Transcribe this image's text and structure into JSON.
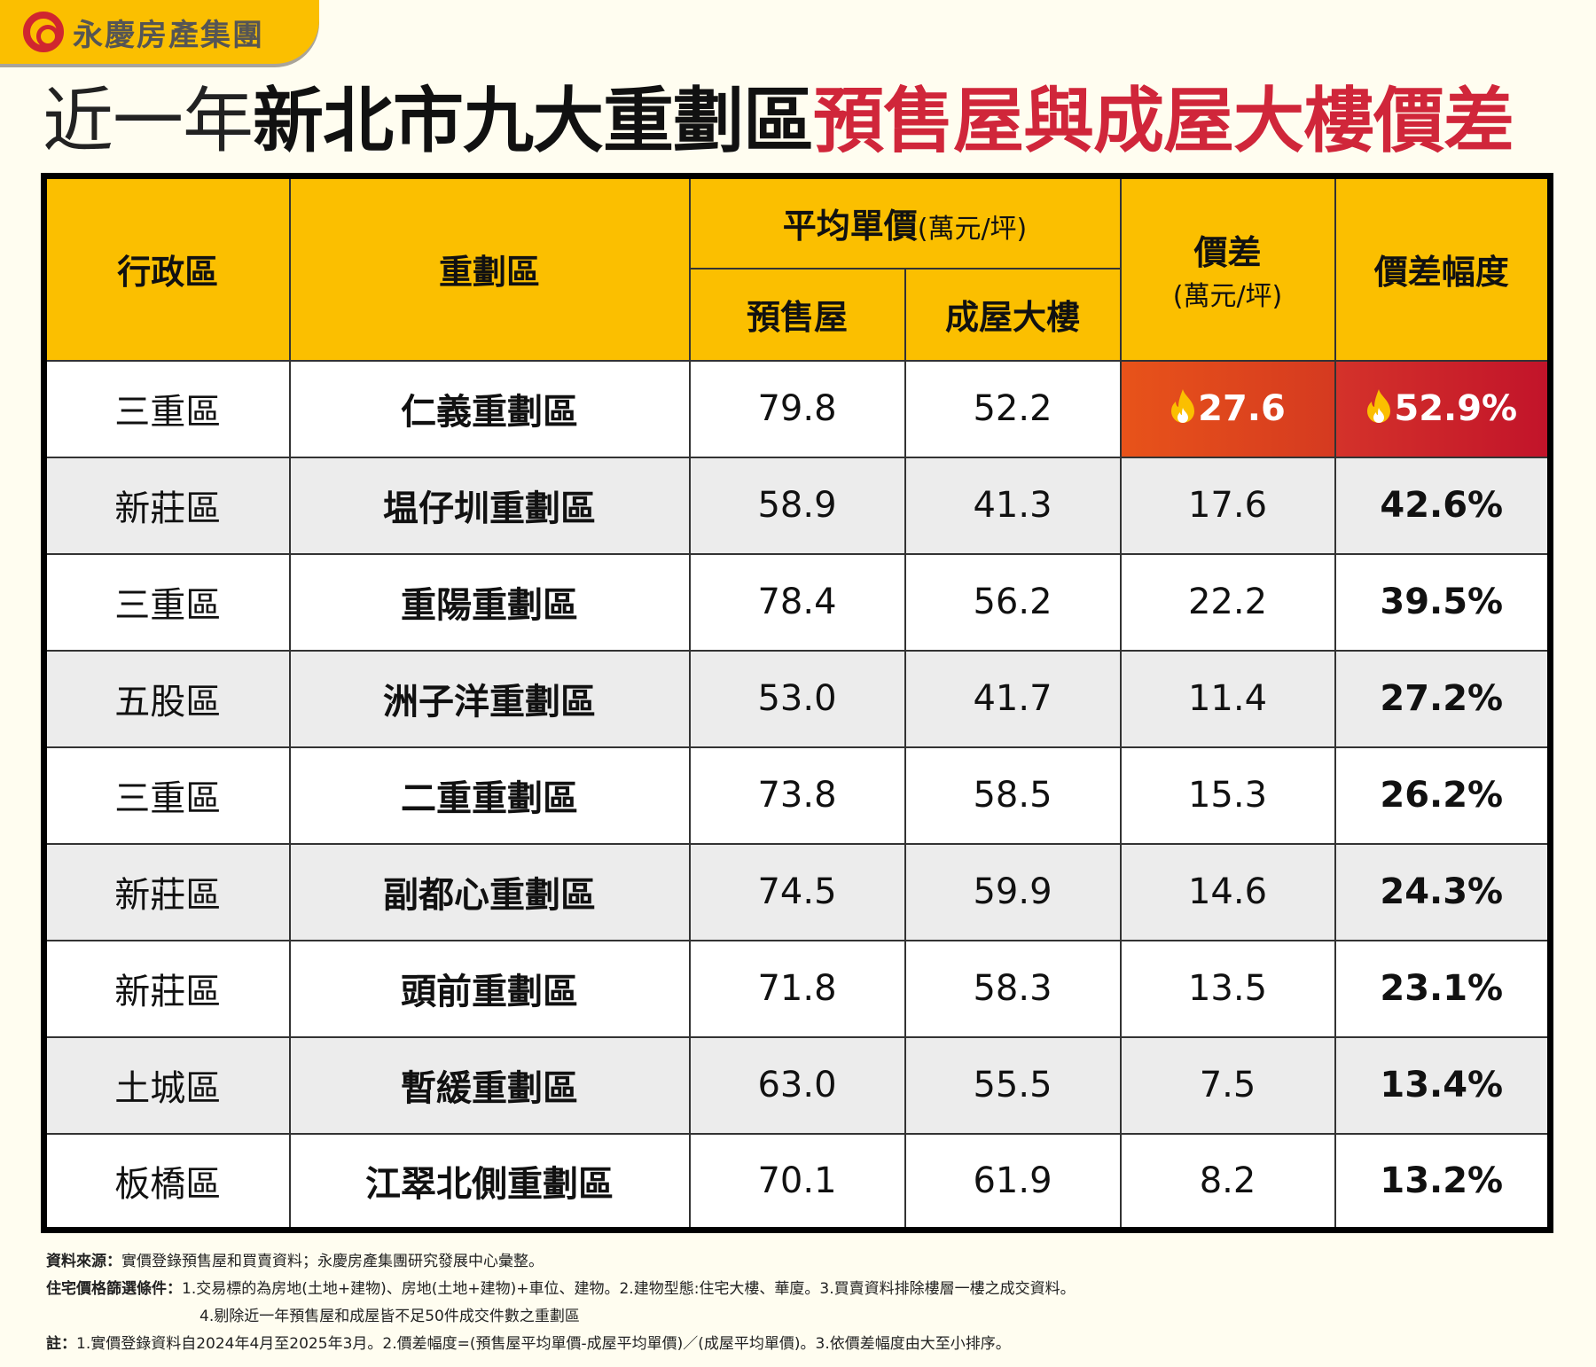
{
  "logo": {
    "text": "永慶房產集團"
  },
  "title": {
    "part1": "近一年",
    "part2": "新北市九大重劃區",
    "part3": "預售屋與成屋大樓價差"
  },
  "table": {
    "headers": {
      "district": "行政區",
      "zone": "重劃區",
      "avg_price": "平均單價",
      "avg_unit": "(萬元/坪)",
      "presale": "預售屋",
      "existing": "成屋大樓",
      "diff": "價差",
      "diff_unit": "(萬元/坪)",
      "ratio": "價差幅度"
    },
    "rows": [
      {
        "district": "三重區",
        "zone": "仁義重劃區",
        "presale": "79.8",
        "existing": "52.2",
        "diff": "27.6",
        "ratio": "52.9%",
        "hot": true
      },
      {
        "district": "新莊區",
        "zone": "塭仔圳重劃區",
        "presale": "58.9",
        "existing": "41.3",
        "diff": "17.6",
        "ratio": "42.6%"
      },
      {
        "district": "三重區",
        "zone": "重陽重劃區",
        "presale": "78.4",
        "existing": "56.2",
        "diff": "22.2",
        "ratio": "39.5%"
      },
      {
        "district": "五股區",
        "zone": "洲子洋重劃區",
        "presale": "53.0",
        "existing": "41.7",
        "diff": "11.4",
        "ratio": "27.2%"
      },
      {
        "district": "三重區",
        "zone": "二重重劃區",
        "presale": "73.8",
        "existing": "58.5",
        "diff": "15.3",
        "ratio": "26.2%"
      },
      {
        "district": "新莊區",
        "zone": "副都心重劃區",
        "presale": "74.5",
        "existing": "59.9",
        "diff": "14.6",
        "ratio": "24.3%"
      },
      {
        "district": "新莊區",
        "zone": "頭前重劃區",
        "presale": "71.8",
        "existing": "58.3",
        "diff": "13.5",
        "ratio": "23.1%"
      },
      {
        "district": "土城區",
        "zone": "暫緩重劃區",
        "presale": "63.0",
        "existing": "55.5",
        "diff": "7.5",
        "ratio": "13.4%"
      },
      {
        "district": "板橋區",
        "zone": "江翠北側重劃區",
        "presale": "70.1",
        "existing": "61.9",
        "diff": "8.2",
        "ratio": "13.2%"
      }
    ]
  },
  "notes": {
    "source_label": "資料來源：",
    "source": "實價登錄預售屋和買賣資料；永慶房產集團研究發展中心彙整。",
    "criteria_label": "住宅價格篩選條件：",
    "criteria1": "1.交易標的為房地(土地+建物)、房地(土地+建物)+車位、建物。2.建物型態:住宅大樓、華廈。3.買賣資料排除樓層一樓之成交資料。",
    "criteria2": "4.剔除近一年預售屋和成屋皆不足50件成交件數之重劃區",
    "note_label": "註：",
    "note": "1.實價登錄資料自2024年4月至2025年3月。2.價差幅度=(預售屋平均單價-成屋平均單價)／(成屋平均單價)。3.依價差幅度由大至小排序。"
  },
  "colors": {
    "header": "#fbbf00",
    "title_red": "#d0263a",
    "hot_orange": "#e8531a",
    "hot_red": "#c2142a"
  }
}
